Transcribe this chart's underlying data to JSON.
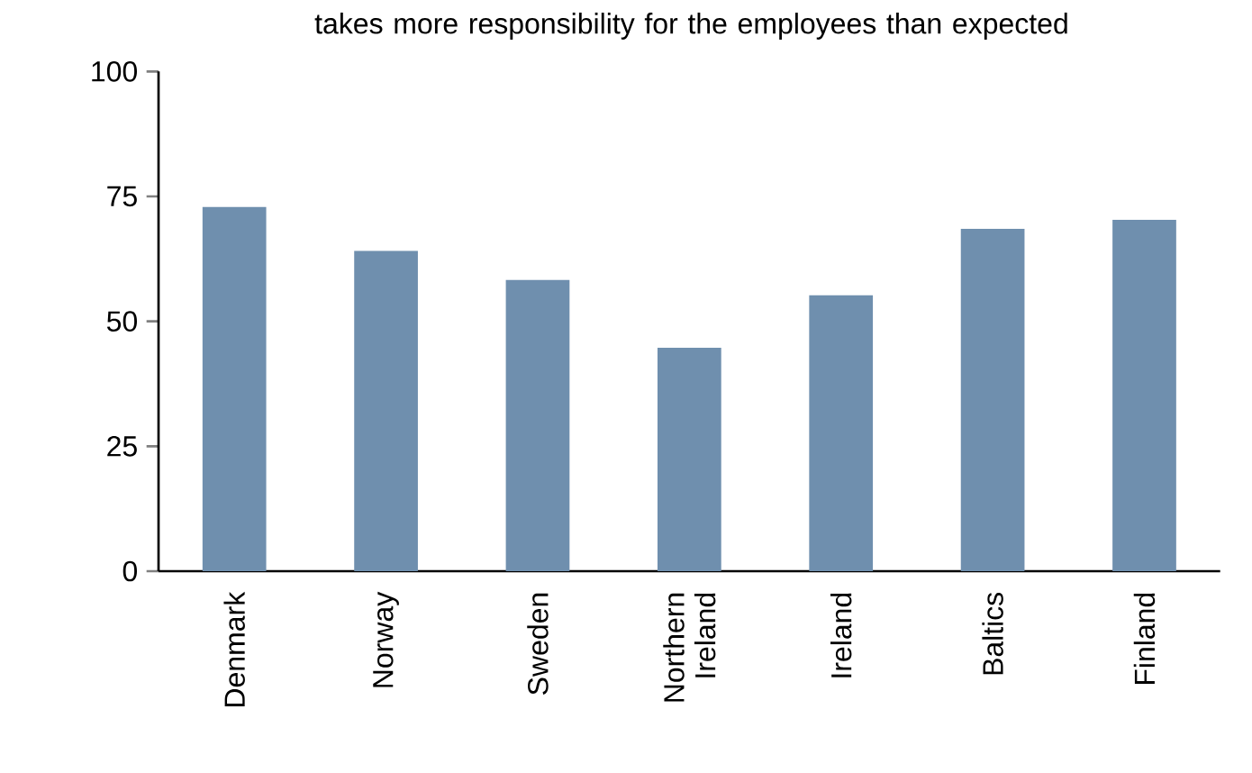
{
  "chart_data": {
    "type": "bar",
    "title": "takes more responsibility for the employees than expected",
    "categories": [
      "Denmark",
      "Norway",
      "Sweden",
      "Northern Ireland",
      "Ireland",
      "Baltics",
      "Finland"
    ],
    "values": [
      72.9,
      64.1,
      58.3,
      44.7,
      55.2,
      68.5,
      70.3
    ],
    "color": "#6f8fae",
    "ylim": [
      0,
      100
    ],
    "yticks": [
      0,
      25,
      50,
      75,
      100
    ]
  }
}
